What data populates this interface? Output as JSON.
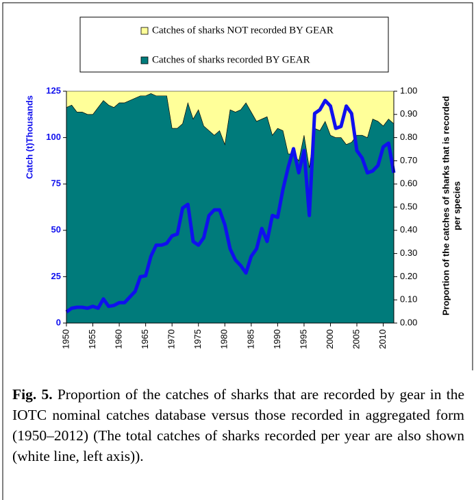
{
  "chart_data": {
    "type": "stacked-area-line",
    "ylabel": "Catch (t)Thousands",
    "y2label": [
      "Proportion of the catches of sharks that is recorded",
      "per species"
    ],
    "x": [
      1950,
      1951,
      1952,
      1953,
      1954,
      1955,
      1956,
      1957,
      1958,
      1959,
      1960,
      1961,
      1962,
      1963,
      1964,
      1965,
      1966,
      1967,
      1968,
      1969,
      1970,
      1971,
      1972,
      1973,
      1974,
      1975,
      1976,
      1977,
      1978,
      1979,
      1980,
      1981,
      1982,
      1983,
      1984,
      1985,
      1986,
      1987,
      1988,
      1989,
      1990,
      1991,
      1992,
      1993,
      1994,
      1995,
      1996,
      1997,
      1998,
      1999,
      2000,
      2001,
      2002,
      2003,
      2004,
      2005,
      2006,
      2007,
      2008,
      2009,
      2010,
      2011,
      2012
    ],
    "xlim": [
      1950,
      2012
    ],
    "xticks": [
      1950,
      1955,
      1960,
      1965,
      1970,
      1975,
      1980,
      1985,
      1990,
      1995,
      2000,
      2005,
      2010
    ],
    "ylim": [
      0,
      125
    ],
    "yticks": [
      0,
      25,
      50,
      75,
      100,
      125
    ],
    "y2lim": [
      0,
      1
    ],
    "y2ticks": [
      {
        "value": 0,
        "label": "0.00"
      },
      {
        "value": 0.1,
        "label": "0.10"
      },
      {
        "value": 0.2,
        "label": "0.20"
      },
      {
        "value": 0.3,
        "label": "0.30"
      },
      {
        "value": 0.4,
        "label": "0.40"
      },
      {
        "value": 0.5,
        "label": "0.50"
      },
      {
        "value": 0.6,
        "label": "0.60"
      },
      {
        "value": 0.7,
        "label": "0.70"
      },
      {
        "value": 0.8,
        "label": "0.80"
      },
      {
        "value": 0.9,
        "label": "0.90"
      },
      {
        "value": 1,
        "label": "1.00"
      }
    ],
    "series": [
      {
        "name": "Catches of sharks recorded BY GEAR",
        "kind": "area",
        "axis": "y2",
        "color": "#007b7b",
        "values": [
          0.93,
          0.94,
          0.91,
          0.91,
          0.9,
          0.9,
          0.93,
          0.96,
          0.94,
          0.93,
          0.95,
          0.95,
          0.96,
          0.97,
          0.98,
          0.98,
          0.99,
          0.98,
          0.98,
          0.98,
          0.84,
          0.84,
          0.86,
          0.95,
          0.88,
          0.92,
          0.85,
          0.83,
          0.81,
          0.83,
          0.77,
          0.92,
          0.91,
          0.92,
          0.95,
          0.91,
          0.87,
          0.88,
          0.89,
          0.81,
          0.84,
          0.83,
          0.73,
          0.73,
          0.7,
          0.81,
          0.67,
          0.84,
          0.83,
          0.87,
          0.81,
          0.8,
          0.8,
          0.77,
          0.78,
          0.81,
          0.81,
          0.8,
          0.88,
          0.87,
          0.85,
          0.88,
          0.86
        ]
      },
      {
        "name": "Catches of sharks NOT recorded BY GEAR",
        "kind": "area",
        "axis": "y2",
        "color": "#ffff99",
        "values": [
          0.07,
          0.06,
          0.09,
          0.09,
          0.1,
          0.1,
          0.07,
          0.04,
          0.06,
          0.07,
          0.05,
          0.05,
          0.04,
          0.03,
          0.02,
          0.02,
          0.01,
          0.02,
          0.02,
          0.02,
          0.16,
          0.16,
          0.14,
          0.05,
          0.12,
          0.08,
          0.15,
          0.17,
          0.19,
          0.17,
          0.23,
          0.08,
          0.09,
          0.08,
          0.05,
          0.09,
          0.13,
          0.12,
          0.11,
          0.19,
          0.16,
          0.17,
          0.27,
          0.27,
          0.3,
          0.19,
          0.33,
          0.16,
          0.17,
          0.13,
          0.19,
          0.2,
          0.2,
          0.23,
          0.22,
          0.19,
          0.19,
          0.2,
          0.12,
          0.13,
          0.15,
          0.12,
          0.14
        ]
      },
      {
        "kind": "line",
        "axis": "y",
        "color": "#1010ee",
        "values": [
          6,
          8,
          8.5,
          8.5,
          8,
          9,
          8,
          13,
          9,
          9.5,
          11,
          11,
          14,
          17,
          25,
          25.5,
          36,
          42,
          42,
          43,
          47,
          48,
          62,
          64,
          44,
          42,
          46,
          58,
          61,
          61,
          53,
          40,
          34,
          31,
          27,
          36,
          40,
          51,
          44,
          58,
          57,
          72,
          84,
          94,
          81,
          93,
          58,
          113,
          115,
          120,
          117,
          105,
          106,
          117,
          113,
          93,
          89,
          81,
          82,
          85,
          95,
          97,
          81
        ]
      }
    ],
    "caption_label": "Fig. 5.",
    "caption_text": "Proportion of the catches of sharks that are recorded by gear in the IOTC nominal catches database versus those recorded in aggregated form (1950–2012) (The total catches of sharks recorded per year are also shown (white line, left axis))."
  }
}
